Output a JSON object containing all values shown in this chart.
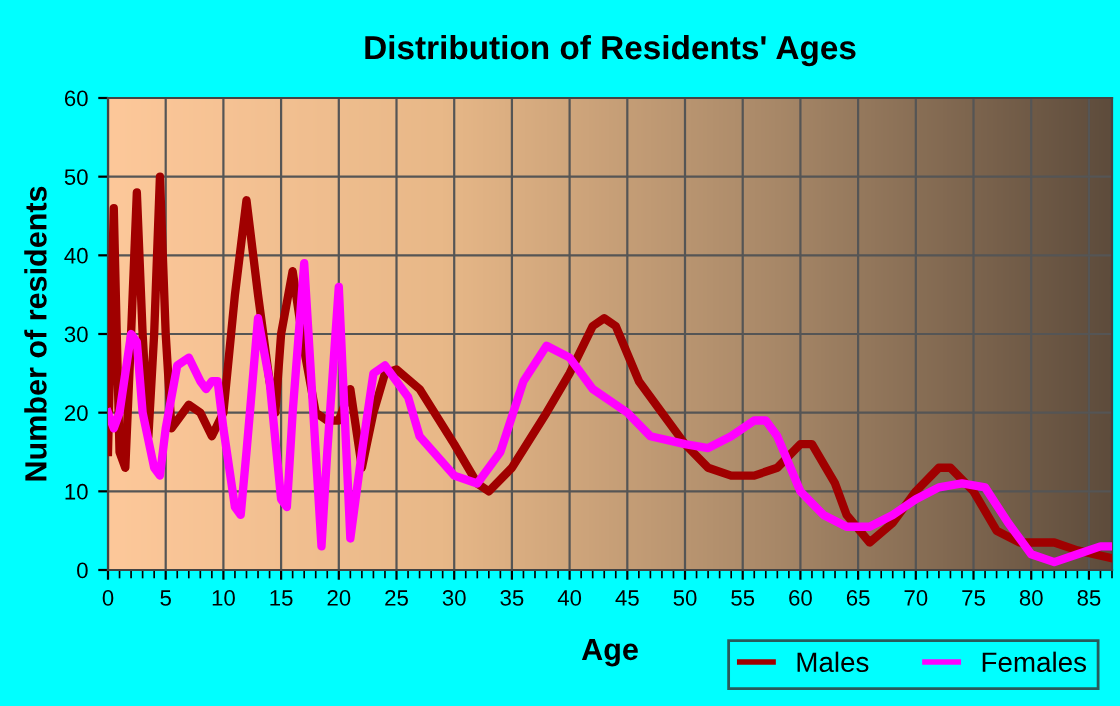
{
  "chart_data": {
    "type": "line",
    "title": "Distribution of Residents' Ages",
    "xlabel": "Age",
    "ylabel": "Number of residents",
    "xlim": [
      0,
      87
    ],
    "xticks": [
      0,
      5,
      10,
      15,
      20,
      25,
      30,
      35,
      40,
      45,
      50,
      55,
      60,
      65,
      70,
      75,
      80,
      85
    ],
    "ylim": [
      0,
      60
    ],
    "yticks": [
      0,
      10,
      20,
      30,
      40,
      50,
      60
    ],
    "grid": true,
    "legend": "bottom right",
    "marker": "none",
    "line_style": "solid",
    "series": [
      {
        "name": "Males",
        "color": "#a00000",
        "x": [
          0,
          0.5,
          1,
          1.5,
          2,
          2.5,
          3,
          3.5,
          4,
          4.5,
          5,
          5.5,
          6,
          7,
          8,
          9,
          10,
          11,
          12,
          13,
          14,
          14.5,
          15,
          16,
          17,
          18,
          19,
          20,
          21,
          22,
          23,
          24,
          25,
          27,
          30,
          32,
          33,
          35,
          38,
          40,
          42,
          43,
          44,
          46,
          48,
          50,
          52,
          54,
          56,
          58,
          60,
          61,
          63,
          64,
          66,
          68,
          70,
          72,
          73,
          75,
          77,
          79,
          82,
          84,
          87
        ],
        "values": [
          15,
          46,
          15,
          13,
          30,
          48,
          30,
          17,
          30,
          50,
          30,
          18,
          19,
          21,
          20,
          17,
          20,
          35,
          47,
          35,
          24,
          20,
          30,
          38,
          28,
          20,
          19,
          19,
          23,
          13,
          20,
          25,
          25.5,
          23,
          16,
          11,
          10,
          13,
          20,
          25,
          31,
          32,
          31,
          24,
          20,
          16,
          13,
          12,
          12,
          13,
          16,
          16,
          11,
          7,
          3.5,
          6,
          10,
          13,
          13,
          10,
          5,
          3.5,
          3.5,
          2.5,
          1.5
        ]
      },
      {
        "name": "Females",
        "color": "#ff00ff",
        "x": [
          0,
          0.5,
          1,
          2,
          2.5,
          3,
          4,
          4.5,
          5,
          6,
          7,
          8,
          8.5,
          9,
          9.5,
          10,
          11,
          11.5,
          12,
          13,
          14,
          15,
          15.5,
          16,
          17,
          18,
          18.5,
          19,
          20,
          20.5,
          21,
          22,
          23,
          24,
          26,
          27,
          30,
          32,
          34,
          36,
          38,
          40,
          42,
          45,
          47,
          50,
          52,
          54,
          56,
          57,
          58,
          60,
          62,
          64,
          66,
          68,
          70,
          72,
          74,
          76,
          78,
          80,
          82,
          84,
          86,
          87
        ],
        "values": [
          20,
          18,
          20,
          30,
          29,
          20,
          13,
          12,
          18,
          26,
          27,
          24,
          23,
          24,
          24,
          18,
          8,
          7,
          15,
          32,
          24,
          9,
          8,
          20,
          39,
          15,
          3,
          15,
          36,
          20,
          4,
          15,
          25,
          26,
          22,
          17,
          12,
          11,
          15,
          24,
          28.5,
          27,
          23,
          20,
          17,
          16,
          15.5,
          17,
          19,
          19,
          17,
          10,
          7,
          5.5,
          5.5,
          7,
          9,
          10.5,
          11,
          10.5,
          6,
          2,
          1,
          2,
          3,
          3
        ]
      }
    ]
  }
}
